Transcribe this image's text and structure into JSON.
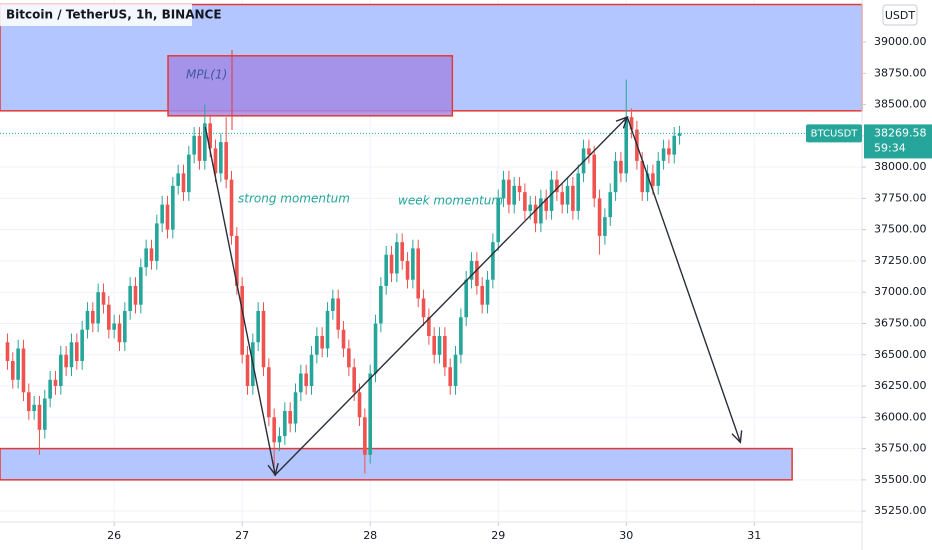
{
  "chart_data": {
    "type": "candlestick",
    "title": "Bitcoin / TetherUS, 1h, BINANCE",
    "currency": "USDT",
    "symbol": "BTCUSDT",
    "countdown": "59:34",
    "up_color": "#26a69a",
    "down_color": "#ef5350",
    "xlim": [
      2.6,
      164.2
    ],
    "xticks": [
      {
        "value": 24,
        "label": "26"
      },
      {
        "value": 48,
        "label": "27"
      },
      {
        "value": 72,
        "label": "28"
      },
      {
        "value": 96,
        "label": "29"
      },
      {
        "value": 120,
        "label": "30"
      },
      {
        "value": 144,
        "label": "31"
      }
    ],
    "ylim": [
      35139,
      39336
    ],
    "yticks": [
      {
        "value": 35250,
        "label": "35250.00"
      },
      {
        "value": 35500,
        "label": "35500.00"
      },
      {
        "value": 35750,
        "label": "35750.00"
      },
      {
        "value": 36000,
        "label": "36000.00"
      },
      {
        "value": 36250,
        "label": "36250.00"
      },
      {
        "value": 36500,
        "label": "36500.00"
      },
      {
        "value": 36750,
        "label": "36750.00"
      },
      {
        "value": 37000,
        "label": "37000.00"
      },
      {
        "value": 37250,
        "label": "37250.00"
      },
      {
        "value": 37500,
        "label": "37500.00"
      },
      {
        "value": 37750,
        "label": "37750.00"
      },
      {
        "value": 38000,
        "label": "38000.00"
      },
      {
        "value": 38250,
        "label": "38250.00"
      },
      {
        "value": 38500,
        "label": "38500.00"
      },
      {
        "value": 38750,
        "label": "38750.00"
      },
      {
        "value": 39000,
        "label": "39000.00"
      }
    ],
    "x": [
      4,
      5,
      6,
      7,
      8,
      9,
      10,
      11,
      12,
      13,
      14,
      15,
      16,
      17,
      18,
      19,
      20,
      21,
      22,
      23,
      24,
      25,
      26,
      27,
      28,
      29,
      30,
      31,
      32,
      33,
      34,
      35,
      36,
      37,
      38,
      39,
      40,
      41,
      42,
      43,
      44,
      45,
      46,
      47,
      48,
      49,
      50,
      51,
      52,
      53,
      54,
      55,
      56,
      57,
      58,
      59,
      60,
      61,
      62,
      63,
      64,
      65,
      66,
      67,
      68,
      69,
      70,
      71,
      72,
      73,
      74,
      75,
      76,
      77,
      78,
      79,
      80,
      81,
      82,
      83,
      84,
      85,
      86,
      87,
      88,
      89,
      90,
      91,
      92,
      93,
      94,
      95,
      96,
      97,
      98,
      99,
      100,
      101,
      102,
      103,
      104,
      105,
      106,
      107,
      108,
      109,
      110,
      111,
      112,
      113,
      114,
      115,
      116,
      117,
      118,
      119,
      120,
      121,
      122,
      123,
      124,
      125,
      126,
      127,
      128,
      129,
      130
    ],
    "open": [
      36600,
      36450,
      36300,
      36550,
      36200,
      36050,
      36100,
      35900,
      36150,
      36300,
      36250,
      36500,
      36400,
      36600,
      36450,
      36700,
      36850,
      36750,
      37000,
      36900,
      36700,
      36750,
      36600,
      36850,
      37050,
      36900,
      37200,
      37350,
      37250,
      37550,
      37700,
      37500,
      37850,
      37950,
      37800,
      38100,
      38250,
      38050,
      38350,
      38150,
      37950,
      38200,
      37900,
      37450,
      37050,
      36500,
      36250,
      36600,
      36850,
      36400,
      36000,
      35800,
      35850,
      36050,
      35950,
      36200,
      36350,
      36250,
      36500,
      36650,
      36550,
      36850,
      36950,
      36700,
      36550,
      36400,
      36200,
      36000,
      35700,
      36350,
      36750,
      37050,
      37300,
      37150,
      37400,
      37250,
      37100,
      37350,
      36950,
      36800,
      36650,
      36500,
      36650,
      36400,
      36250,
      36500,
      36800,
      37100,
      37250,
      37050,
      36900,
      37100,
      37400,
      37750,
      37900,
      37700,
      37850,
      37800,
      37650,
      37700,
      37550,
      37750,
      37650,
      37900,
      37800,
      37700,
      37850,
      37650,
      37950,
      38150,
      38100,
      37750,
      37450,
      37600,
      37800,
      38050,
      37950,
      38400,
      38300,
      38050,
      37800,
      37950,
      37850,
      38050,
      38150,
      38100,
      38250
    ],
    "high": [
      36670,
      36520,
      36620,
      36620,
      36270,
      36170,
      36170,
      36220,
      36370,
      36370,
      36570,
      36570,
      36670,
      36670,
      36770,
      36920,
      36920,
      37070,
      37070,
      36970,
      36820,
      36820,
      36920,
      37120,
      37120,
      37270,
      37420,
      37420,
      37620,
      37770,
      37770,
      37920,
      38020,
      38020,
      38170,
      38320,
      38320,
      38500,
      38420,
      38220,
      38270,
      38400,
      37970,
      37520,
      37120,
      36570,
      36670,
      36920,
      36920,
      36470,
      36070,
      35920,
      36120,
      36120,
      36270,
      36420,
      36420,
      36570,
      36720,
      36720,
      36920,
      37020,
      37020,
      36770,
      36620,
      36470,
      36270,
      36070,
      36420,
      36820,
      37120,
      37370,
      37370,
      37470,
      37470,
      37320,
      37420,
      37420,
      37020,
      36870,
      36720,
      36720,
      36720,
      36470,
      36570,
      36870,
      37170,
      37320,
      37320,
      37120,
      37170,
      37470,
      37820,
      37970,
      37970,
      37920,
      37920,
      37870,
      37770,
      37770,
      37820,
      37820,
      37970,
      37970,
      37870,
      37920,
      37920,
      38020,
      38220,
      38220,
      38170,
      37820,
      37670,
      37870,
      38120,
      38120,
      38700,
      38470,
      38370,
      38120,
      38020,
      38020,
      38120,
      38220,
      38220,
      38320,
      38330
    ],
    "low": [
      36380,
      36230,
      36230,
      36130,
      35980,
      35980,
      35700,
      35830,
      36080,
      36180,
      36180,
      36330,
      36330,
      36380,
      36380,
      36630,
      36680,
      36680,
      36830,
      36630,
      36630,
      36530,
      36530,
      36780,
      36830,
      36830,
      37130,
      37180,
      37180,
      37480,
      37430,
      37430,
      37780,
      37730,
      37730,
      38030,
      37980,
      37980,
      38080,
      37880,
      37880,
      37830,
      37380,
      36980,
      36430,
      36180,
      36180,
      36530,
      36330,
      35930,
      35530,
      35730,
      35780,
      35880,
      35880,
      36130,
      36180,
      36180,
      36430,
      36480,
      36480,
      36780,
      36630,
      36480,
      36330,
      36130,
      35930,
      35550,
      35630,
      36280,
      36680,
      36980,
      37080,
      37080,
      37180,
      37030,
      37030,
      36880,
      36730,
      36580,
      36430,
      36430,
      36330,
      36180,
      36180,
      36430,
      36730,
      37030,
      36980,
      36830,
      36830,
      37030,
      37330,
      37680,
      37630,
      37630,
      37730,
      37580,
      37580,
      37480,
      37480,
      37580,
      37580,
      37730,
      37630,
      37630,
      37580,
      37580,
      37880,
      38030,
      37680,
      37300,
      37380,
      37530,
      37730,
      37880,
      37880,
      38230,
      37980,
      37730,
      37730,
      37780,
      37780,
      37980,
      38030,
      38030,
      38180
    ],
    "close": [
      36450,
      36300,
      36550,
      36200,
      36050,
      36100,
      35900,
      36150,
      36300,
      36250,
      36500,
      36400,
      36600,
      36450,
      36700,
      36850,
      36750,
      37000,
      36900,
      36700,
      36750,
      36600,
      36850,
      37050,
      36900,
      37200,
      37350,
      37250,
      37550,
      37700,
      37500,
      37850,
      37950,
      37800,
      38100,
      38250,
      38050,
      38350,
      38150,
      37950,
      38200,
      37900,
      37450,
      37050,
      36500,
      36250,
      36600,
      36850,
      36400,
      36000,
      35800,
      35850,
      36050,
      35950,
      36200,
      36350,
      36250,
      36500,
      36650,
      36550,
      36850,
      36950,
      36700,
      36550,
      36400,
      36200,
      36000,
      35700,
      36350,
      36750,
      37050,
      37300,
      37150,
      37400,
      37250,
      37100,
      37350,
      36950,
      36800,
      36650,
      36500,
      36650,
      36400,
      36250,
      36500,
      36800,
      37100,
      37250,
      37050,
      36900,
      37100,
      37400,
      37750,
      37900,
      37700,
      37850,
      37800,
      37650,
      37700,
      37550,
      37750,
      37650,
      37900,
      37800,
      37700,
      37850,
      37650,
      37950,
      38150,
      38100,
      37750,
      37450,
      37600,
      37800,
      38050,
      37950,
      38400,
      38300,
      38050,
      37800,
      37950,
      37850,
      38050,
      38150,
      38100,
      38250,
      38269.58
    ],
    "zones": [
      {
        "x": [
          2.6,
          164.2
        ],
        "y": [
          38450,
          39300
        ],
        "color": "#a7bcff"
      },
      {
        "x": [
          34.1,
          87.4
        ],
        "y": [
          38410,
          38890
        ],
        "color": "#a28ae6"
      },
      {
        "x": [
          2.6,
          151.1
        ],
        "y": [
          35500,
          35750
        ],
        "color": "#a7bcff"
      }
    ],
    "arrows": [
      [
        [
          41.1,
          38320
        ],
        [
          54.2,
          35540
        ]
      ],
      [
        [
          54.2,
          35540
        ],
        [
          120.2,
          38400
        ]
      ],
      [
        [
          120.2,
          38400
        ],
        [
          141.4,
          35800
        ]
      ]
    ],
    "annotations": [
      "MPL(1)",
      "strong momentum",
      "week momentum"
    ]
  }
}
